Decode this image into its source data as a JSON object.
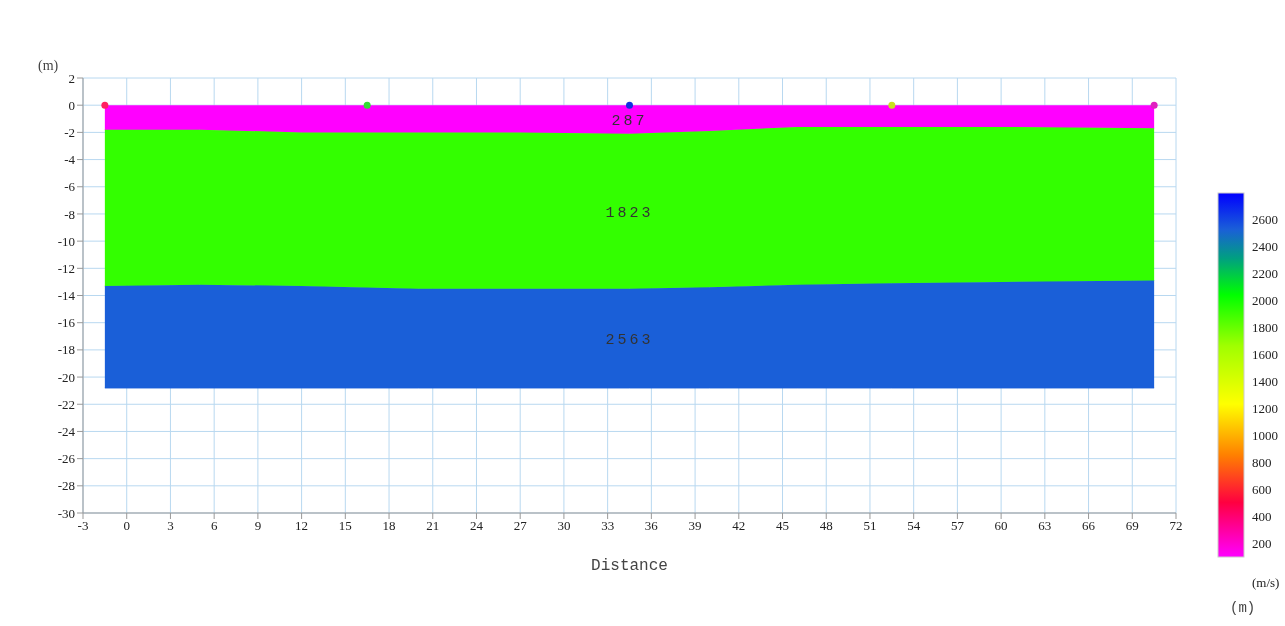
{
  "chart_data": {
    "type": "area",
    "stacked": true,
    "xlabel": "Distance",
    "ylabel": "(m)",
    "clabel": "(m/s)",
    "x": [
      -1.5,
      5,
      12,
      20,
      27,
      34.5,
      40,
      46,
      52.5,
      60,
      70.5
    ],
    "series": [
      {
        "name": "287",
        "color": "#ff00ff",
        "values": [
          -1.8,
          -1.8,
          -2.0,
          -2.0,
          -2.0,
          -2.1,
          -1.9,
          -1.6,
          -1.6,
          -1.6,
          -1.7
        ]
      },
      {
        "name": "1823",
        "color": "#33ff00",
        "values": [
          -11.5,
          -11.4,
          -11.3,
          -11.5,
          -11.5,
          -11.4,
          -11.5,
          -11.6,
          -11.5,
          -11.4,
          -11.2
        ]
      },
      {
        "name": "2563",
        "color": "#1a5fd8",
        "values": [
          -7.5,
          -7.6,
          -7.5,
          -7.3,
          -7.3,
          -7.3,
          -7.4,
          -7.6,
          -7.7,
          -7.8,
          -7.9
        ]
      },
      {
        "type": "scatter",
        "marker": "circle",
        "x": [
          -1.5,
          16.5,
          34.5,
          52.5,
          70.5
        ],
        "values": [
          0,
          0,
          0,
          0,
          0
        ],
        "colors": [
          "#ff2060",
          "#33dd33",
          "#1030e0",
          "#c8e020",
          "#e020c0"
        ]
      }
    ],
    "annotations": [
      "(m)"
    ],
    "xlim": [
      -3,
      72
    ],
    "xticks": [
      -3,
      0,
      3,
      6,
      9,
      12,
      15,
      18,
      21,
      24,
      27,
      30,
      33,
      36,
      39,
      42,
      45,
      48,
      51,
      54,
      57,
      60,
      63,
      66,
      69,
      72
    ],
    "ylim": [
      -30,
      2
    ],
    "yticks": [
      -30,
      -28,
      -26,
      -24,
      -22,
      -20,
      -18,
      -16,
      -14,
      -12,
      -10,
      -8,
      -6,
      -4,
      -2,
      0,
      2
    ],
    "clim": [
      100,
      2800
    ],
    "cticks": [
      200,
      400,
      600,
      800,
      1000,
      1200,
      1400,
      1600,
      1800,
      2000,
      2200,
      2400,
      2600
    ],
    "grid": true,
    "legend": false
  }
}
